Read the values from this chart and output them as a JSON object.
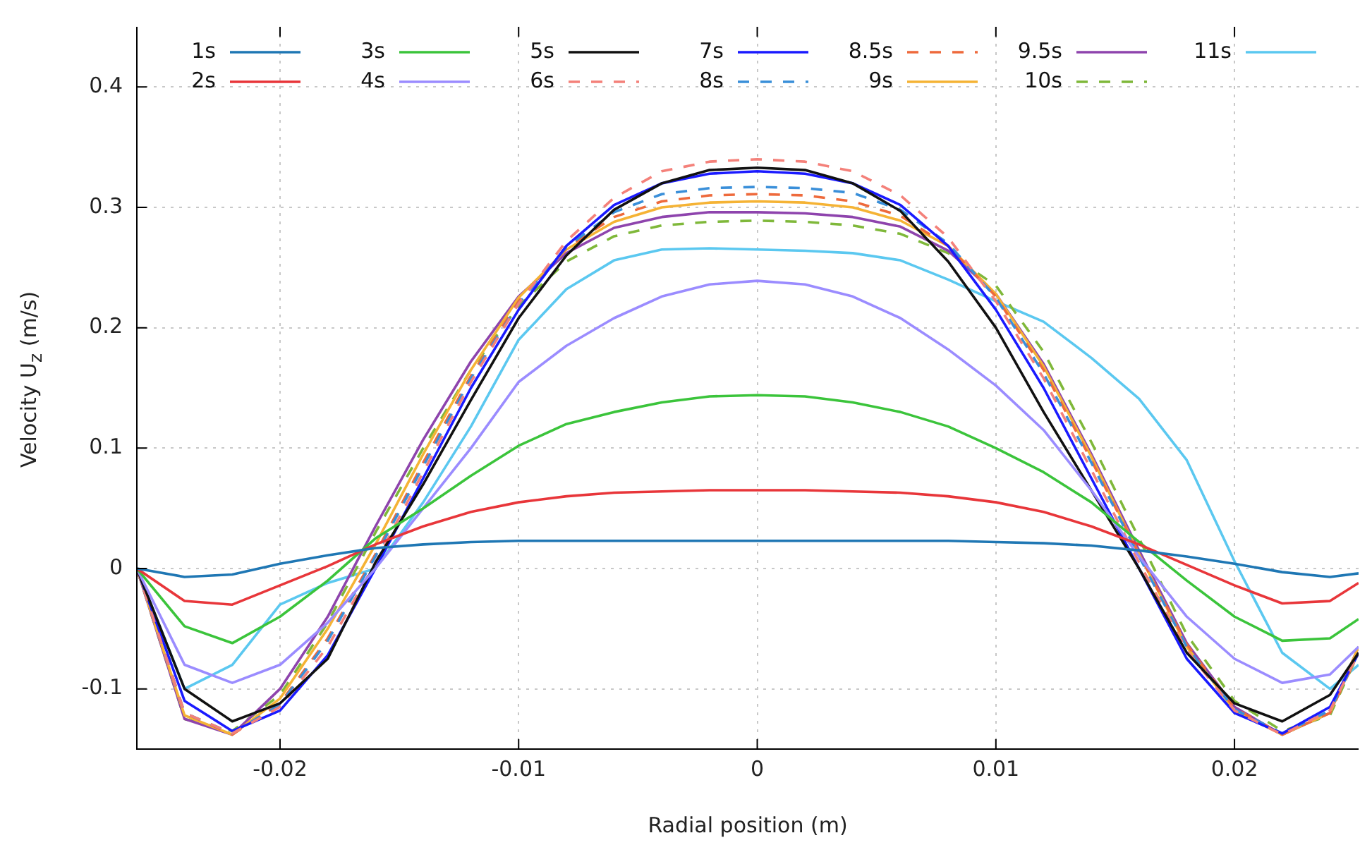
{
  "chart_data": {
    "type": "line",
    "xlabel": "Radial position (m)",
    "ylabel": "Velocity U$_{z}$ (m/s)",
    "x": [
      -0.026,
      -0.024,
      -0.022,
      -0.02,
      -0.018,
      -0.016,
      -0.014,
      -0.012,
      -0.01,
      -0.008,
      -0.006,
      -0.004,
      -0.002,
      0,
      0.002,
      0.004,
      0.006,
      0.008,
      0.01,
      0.012,
      0.014,
      0.016,
      0.018,
      0.02,
      0.022,
      0.024,
      0.0252
    ],
    "xlim": [
      -0.026,
      0.0252
    ],
    "xticks": [
      -0.02,
      -0.01,
      0,
      0.01,
      0.02
    ],
    "ylim": [
      -0.15,
      0.45
    ],
    "yticks": [
      -0.1,
      0,
      0.1,
      0.2,
      0.3,
      0.4
    ],
    "grid": true,
    "legend": "top",
    "marker": "none",
    "series": [
      {
        "name": "1s",
        "color": "#1f77b4",
        "values": [
          0,
          -0.007,
          -0.005,
          0.004,
          0.011,
          0.017,
          0.02,
          0.022,
          0.023,
          0.023,
          0.023,
          0.023,
          0.023,
          0.023,
          0.023,
          0.023,
          0.023,
          0.023,
          0.022,
          0.021,
          0.019,
          0.015,
          0.01,
          0.004,
          -0.003,
          -0.007,
          -0.004
        ]
      },
      {
        "name": "2s",
        "color": "#e8363a",
        "values": [
          0,
          -0.027,
          -0.03,
          -0.014,
          0.002,
          0.02,
          0.035,
          0.047,
          0.055,
          0.06,
          0.063,
          0.064,
          0.065,
          0.065,
          0.065,
          0.064,
          0.063,
          0.06,
          0.055,
          0.047,
          0.035,
          0.02,
          0.003,
          -0.014,
          -0.029,
          -0.027,
          -0.012
        ]
      },
      {
        "name": "3s",
        "color": "#3bc43b",
        "values": [
          0,
          -0.048,
          -0.062,
          -0.04,
          -0.01,
          0.025,
          0.05,
          0.077,
          0.102,
          0.12,
          0.13,
          0.138,
          0.143,
          0.144,
          0.143,
          0.138,
          0.13,
          0.118,
          0.1,
          0.08,
          0.055,
          0.022,
          -0.01,
          -0.04,
          -0.06,
          -0.058,
          -0.042
        ]
      },
      {
        "name": "4s",
        "color": "#9b8cff",
        "values": [
          0,
          -0.08,
          -0.095,
          -0.08,
          -0.045,
          0,
          0.05,
          0.1,
          0.155,
          0.185,
          0.208,
          0.226,
          0.236,
          0.239,
          0.236,
          0.226,
          0.208,
          0.182,
          0.152,
          0.115,
          0.065,
          0.01,
          -0.04,
          -0.075,
          -0.095,
          -0.088,
          -0.065
        ]
      },
      {
        "name": "5s",
        "color": "#111111",
        "values": [
          0,
          -0.1,
          -0.127,
          -0.112,
          -0.075,
          0.005,
          0.07,
          0.14,
          0.208,
          0.26,
          0.298,
          0.32,
          0.331,
          0.333,
          0.331,
          0.32,
          0.297,
          0.255,
          0.2,
          0.13,
          0.065,
          0,
          -0.07,
          -0.112,
          -0.127,
          -0.105,
          -0.07
        ]
      },
      {
        "name": "6s",
        "color": "#f4817a",
        "line_style": "dashed",
        "values": [
          0,
          -0.12,
          -0.137,
          -0.115,
          -0.065,
          0.005,
          0.08,
          0.155,
          0.22,
          0.272,
          0.308,
          0.33,
          0.338,
          0.34,
          0.338,
          0.33,
          0.31,
          0.275,
          0.222,
          0.158,
          0.082,
          0.005,
          -0.068,
          -0.118,
          -0.138,
          -0.118,
          -0.07
        ]
      },
      {
        "name": "7s",
        "color": "#1a1aff",
        "values": [
          0,
          -0.11,
          -0.135,
          -0.118,
          -0.072,
          0,
          0.075,
          0.15,
          0.215,
          0.268,
          0.302,
          0.32,
          0.328,
          0.33,
          0.328,
          0.32,
          0.302,
          0.268,
          0.215,
          0.15,
          0.075,
          0,
          -0.075,
          -0.12,
          -0.137,
          -0.115,
          -0.07
        ]
      },
      {
        "name": "8s",
        "color": "#3a8fd9",
        "line_style": "dashed",
        "values": [
          0,
          -0.12,
          -0.137,
          -0.113,
          -0.06,
          0.01,
          0.085,
          0.158,
          0.22,
          0.267,
          0.296,
          0.311,
          0.316,
          0.317,
          0.316,
          0.312,
          0.298,
          0.27,
          0.225,
          0.162,
          0.088,
          0.01,
          -0.065,
          -0.117,
          -0.137,
          -0.118,
          -0.07
        ]
      },
      {
        "name": "8.5s",
        "color": "#ee6a3c",
        "line_style": "dashed",
        "values": [
          0,
          -0.12,
          -0.138,
          -0.112,
          -0.058,
          0.012,
          0.088,
          0.16,
          0.222,
          0.266,
          0.292,
          0.305,
          0.31,
          0.311,
          0.31,
          0.305,
          0.293,
          0.268,
          0.226,
          0.165,
          0.09,
          0.012,
          -0.063,
          -0.116,
          -0.138,
          -0.12,
          -0.07
        ]
      },
      {
        "name": "9s",
        "color": "#f5b335",
        "values": [
          0,
          -0.122,
          -0.138,
          -0.108,
          -0.05,
          0.02,
          0.095,
          0.165,
          0.225,
          0.265,
          0.288,
          0.3,
          0.304,
          0.305,
          0.304,
          0.3,
          0.289,
          0.268,
          0.228,
          0.168,
          0.093,
          0.012,
          -0.065,
          -0.118,
          -0.138,
          -0.12,
          -0.065
        ]
      },
      {
        "name": "9.5s",
        "color": "#8e44ad",
        "values": [
          0,
          -0.125,
          -0.138,
          -0.1,
          -0.04,
          0.035,
          0.107,
          0.172,
          0.226,
          0.262,
          0.283,
          0.292,
          0.296,
          0.296,
          0.295,
          0.292,
          0.284,
          0.264,
          0.228,
          0.17,
          0.095,
          0.015,
          -0.062,
          -0.115,
          -0.138,
          -0.12,
          -0.065
        ]
      },
      {
        "name": "10s",
        "color": "#7fb83a",
        "line_style": "dashed",
        "values": [
          0,
          -0.125,
          -0.135,
          -0.105,
          -0.045,
          0.03,
          0.1,
          0.165,
          0.218,
          0.255,
          0.276,
          0.285,
          0.288,
          0.289,
          0.288,
          0.285,
          0.278,
          0.262,
          0.235,
          0.18,
          0.105,
          0.025,
          -0.055,
          -0.11,
          -0.135,
          -0.122,
          -0.07
        ]
      },
      {
        "name": "11s",
        "color": "#5bc8f0",
        "values": [
          0,
          -0.1,
          -0.08,
          -0.03,
          -0.012,
          0,
          0.055,
          0.118,
          0.19,
          0.232,
          0.256,
          0.265,
          0.266,
          0.265,
          0.264,
          0.262,
          0.256,
          0.24,
          0.222,
          0.205,
          0.175,
          0.141,
          0.09,
          0.006,
          -0.07,
          -0.1,
          -0.08
        ]
      }
    ]
  }
}
